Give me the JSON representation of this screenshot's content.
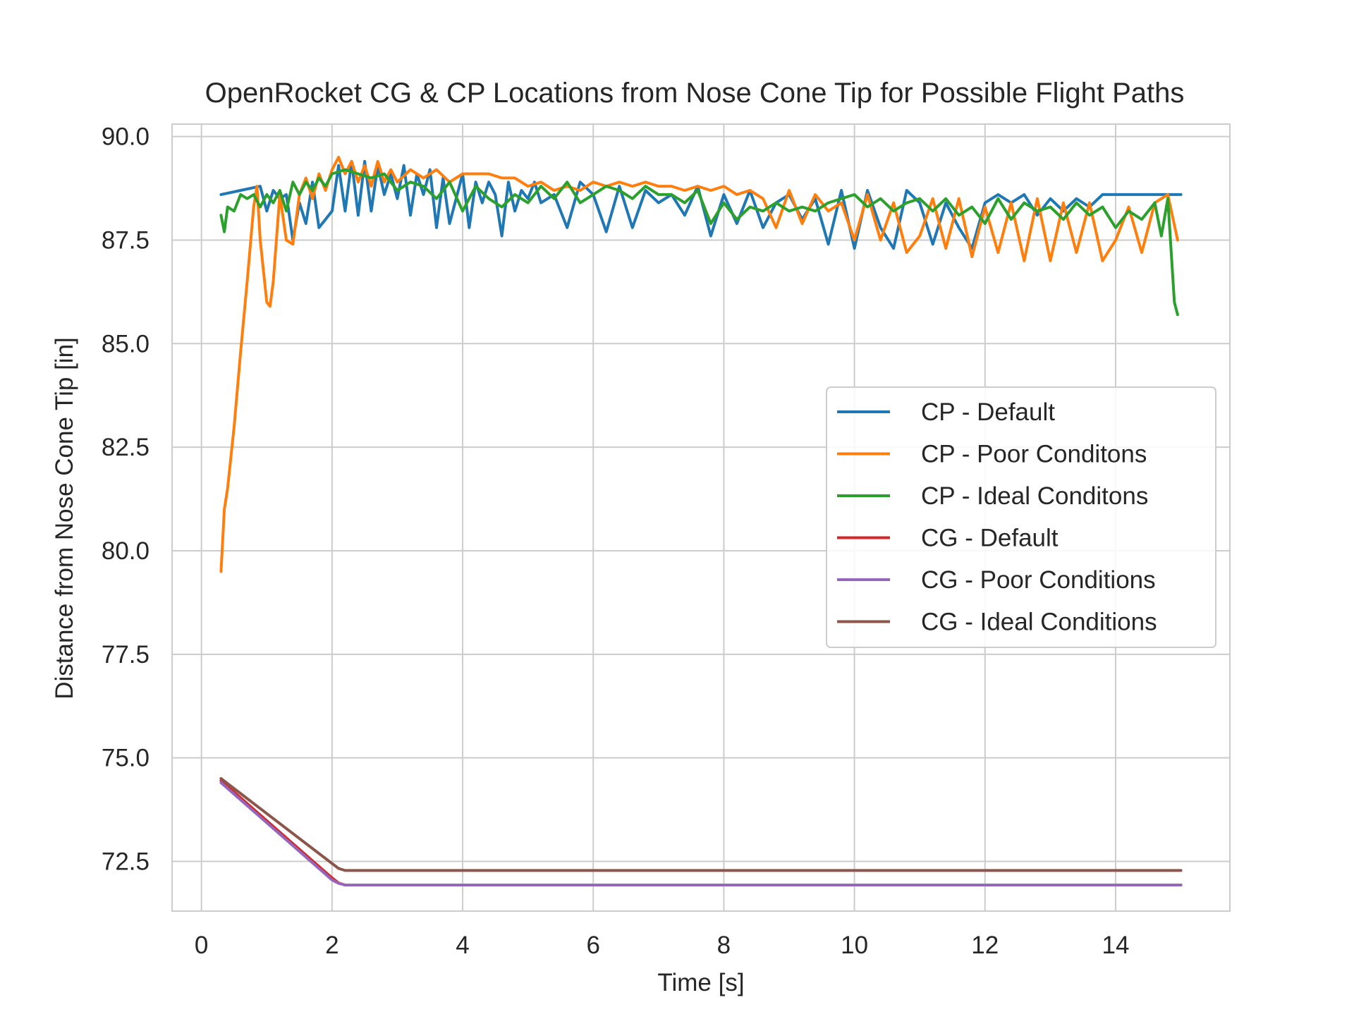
{
  "chart_data": {
    "type": "line",
    "title": "OpenRocket CG & CP Locations from Nose Cone Tip for Possible Flight Paths",
    "xlabel": "Time [s]",
    "ylabel": "Distance from Nose Cone Tip [in]",
    "xlim": [
      -0.45,
      15.75
    ],
    "ylim": [
      71.3,
      90.3
    ],
    "xticks": [
      0,
      2,
      4,
      6,
      8,
      10,
      12,
      14
    ],
    "xtick_labels": [
      "0",
      "2",
      "4",
      "6",
      "8",
      "10",
      "12",
      "14"
    ],
    "yticks": [
      72.5,
      75.0,
      77.5,
      80.0,
      82.5,
      85.0,
      87.5,
      90.0
    ],
    "ytick_labels": [
      "72.5",
      "75.0",
      "77.5",
      "80.0",
      "82.5",
      "85.0",
      "87.5",
      "90.0"
    ],
    "grid": true,
    "legend_position": "center-right",
    "series": [
      {
        "name": "CP - Default",
        "color": "#1f77b4",
        "x": [
          0.3,
          0.6,
          0.9,
          1.0,
          1.1,
          1.2,
          1.3,
          1.4,
          1.5,
          1.6,
          1.7,
          1.8,
          1.9,
          2.0,
          2.1,
          2.2,
          2.3,
          2.4,
          2.5,
          2.6,
          2.7,
          2.8,
          2.9,
          3.0,
          3.1,
          3.2,
          3.3,
          3.4,
          3.5,
          3.6,
          3.7,
          3.8,
          3.9,
          4.0,
          4.1,
          4.2,
          4.3,
          4.4,
          4.5,
          4.6,
          4.7,
          4.8,
          4.9,
          5.0,
          5.1,
          5.2,
          5.4,
          5.6,
          5.8,
          6.0,
          6.2,
          6.4,
          6.6,
          6.8,
          7.0,
          7.2,
          7.4,
          7.6,
          7.8,
          8.0,
          8.2,
          8.4,
          8.6,
          8.8,
          9.0,
          9.2,
          9.4,
          9.6,
          9.8,
          10.0,
          10.2,
          10.4,
          10.6,
          10.8,
          11.0,
          11.2,
          11.4,
          11.6,
          11.8,
          12.0,
          12.2,
          12.4,
          12.6,
          12.8,
          13.0,
          13.2,
          13.4,
          13.6,
          13.8,
          14.0,
          14.2,
          14.4,
          14.6,
          14.8,
          15.0
        ],
        "y": [
          88.6,
          88.7,
          88.8,
          88.2,
          88.7,
          88.5,
          88.6,
          87.5,
          88.4,
          87.9,
          88.9,
          87.8,
          88.0,
          88.2,
          89.3,
          88.2,
          89.4,
          88.1,
          89.4,
          88.2,
          89.3,
          88.6,
          89.1,
          88.5,
          89.3,
          88.1,
          89.1,
          88.6,
          89.2,
          87.8,
          89.0,
          87.9,
          88.5,
          89.1,
          87.8,
          88.9,
          88.4,
          88.9,
          88.6,
          87.6,
          88.9,
          88.2,
          88.7,
          88.5,
          88.9,
          88.4,
          88.6,
          87.8,
          88.9,
          88.6,
          87.7,
          88.8,
          87.8,
          88.7,
          88.4,
          88.6,
          88.1,
          88.8,
          87.6,
          88.6,
          87.9,
          88.7,
          87.8,
          88.4,
          88.6,
          88.0,
          88.5,
          87.4,
          88.7,
          87.3,
          88.7,
          87.8,
          87.3,
          88.7,
          88.4,
          87.4,
          88.4,
          87.8,
          87.3,
          88.4,
          88.6,
          88.4,
          88.6,
          88.1,
          88.5,
          88.2,
          88.5,
          88.3,
          88.6,
          88.6,
          88.6,
          88.6,
          88.6,
          88.6,
          88.6
        ]
      },
      {
        "name": "CP - Poor Conditons",
        "color": "#ff7f0e",
        "x": [
          0.3,
          0.35,
          0.4,
          0.5,
          0.6,
          0.7,
          0.8,
          0.85,
          0.9,
          1.0,
          1.05,
          1.1,
          1.2,
          1.3,
          1.4,
          1.5,
          1.6,
          1.7,
          1.8,
          1.9,
          2.0,
          2.1,
          2.2,
          2.3,
          2.4,
          2.5,
          2.6,
          2.7,
          2.8,
          2.9,
          3.0,
          3.2,
          3.4,
          3.6,
          3.8,
          4.0,
          4.2,
          4.4,
          4.6,
          4.8,
          5.0,
          5.2,
          5.4,
          5.6,
          5.8,
          6.0,
          6.2,
          6.4,
          6.6,
          6.8,
          7.0,
          7.2,
          7.4,
          7.6,
          7.8,
          8.0,
          8.2,
          8.4,
          8.6,
          8.8,
          9.0,
          9.2,
          9.4,
          9.6,
          9.8,
          10.0,
          10.2,
          10.4,
          10.6,
          10.8,
          11.0,
          11.2,
          11.4,
          11.6,
          11.8,
          12.0,
          12.2,
          12.4,
          12.6,
          12.8,
          13.0,
          13.2,
          13.4,
          13.6,
          13.8,
          14.0,
          14.2,
          14.4,
          14.6,
          14.8,
          14.95
        ],
        "y": [
          79.5,
          81.0,
          81.5,
          83.0,
          84.8,
          86.5,
          88.3,
          88.8,
          87.5,
          86.0,
          85.9,
          86.5,
          88.6,
          87.5,
          87.4,
          88.6,
          89.0,
          88.5,
          89.1,
          88.7,
          89.2,
          89.5,
          89.1,
          89.4,
          88.9,
          89.3,
          88.8,
          89.4,
          88.9,
          89.2,
          88.9,
          89.2,
          89.0,
          89.2,
          88.9,
          89.1,
          89.1,
          89.1,
          89.0,
          89.0,
          88.8,
          88.9,
          88.7,
          88.8,
          88.7,
          88.9,
          88.8,
          88.9,
          88.8,
          88.9,
          88.8,
          88.8,
          88.7,
          88.8,
          88.7,
          88.8,
          88.6,
          88.7,
          88.5,
          87.8,
          88.7,
          87.9,
          88.6,
          88.2,
          88.4,
          87.5,
          88.6,
          87.5,
          88.4,
          87.2,
          87.6,
          88.5,
          87.3,
          88.5,
          87.1,
          88.3,
          87.2,
          88.4,
          87.0,
          88.5,
          87.0,
          88.4,
          87.2,
          88.4,
          87.0,
          87.5,
          88.3,
          87.2,
          88.4,
          88.6,
          87.5
        ]
      },
      {
        "name": "CP - Ideal Conditons",
        "color": "#2ca02c",
        "x": [
          0.3,
          0.35,
          0.4,
          0.5,
          0.6,
          0.7,
          0.8,
          0.9,
          1.0,
          1.1,
          1.2,
          1.3,
          1.4,
          1.5,
          1.6,
          1.7,
          1.8,
          1.9,
          2.0,
          2.2,
          2.4,
          2.6,
          2.8,
          3.0,
          3.2,
          3.4,
          3.6,
          3.8,
          4.0,
          4.2,
          4.4,
          4.6,
          4.8,
          5.0,
          5.2,
          5.4,
          5.6,
          5.8,
          6.0,
          6.2,
          6.4,
          6.6,
          6.8,
          7.0,
          7.2,
          7.4,
          7.6,
          7.8,
          8.0,
          8.2,
          8.4,
          8.6,
          8.8,
          9.0,
          9.2,
          9.4,
          9.6,
          9.8,
          10.0,
          10.2,
          10.4,
          10.6,
          10.8,
          11.0,
          11.2,
          11.4,
          11.6,
          11.8,
          12.0,
          12.2,
          12.4,
          12.6,
          12.8,
          13.0,
          13.2,
          13.4,
          13.6,
          13.8,
          14.0,
          14.2,
          14.4,
          14.6,
          14.7,
          14.8,
          14.9,
          14.95
        ],
        "y": [
          88.1,
          87.7,
          88.3,
          88.2,
          88.6,
          88.5,
          88.6,
          88.3,
          88.6,
          88.4,
          88.7,
          88.2,
          88.9,
          88.6,
          88.9,
          88.7,
          89.0,
          88.8,
          89.1,
          89.2,
          89.1,
          89.0,
          89.1,
          88.7,
          88.9,
          88.8,
          88.5,
          88.9,
          88.2,
          88.8,
          88.5,
          88.3,
          88.6,
          88.4,
          88.8,
          88.5,
          88.9,
          88.4,
          88.6,
          88.8,
          88.7,
          88.5,
          88.8,
          88.6,
          88.6,
          88.4,
          88.7,
          87.9,
          88.4,
          88.0,
          88.3,
          88.2,
          88.4,
          88.2,
          88.3,
          88.2,
          88.4,
          88.5,
          88.6,
          88.3,
          88.5,
          88.2,
          88.4,
          88.5,
          88.2,
          88.5,
          88.1,
          88.3,
          87.9,
          88.5,
          88.0,
          88.4,
          88.2,
          88.3,
          88.0,
          88.4,
          88.1,
          88.3,
          87.8,
          88.2,
          88.0,
          88.4,
          87.6,
          88.5,
          86.0,
          85.7
        ]
      },
      {
        "name": "CG - Default",
        "color": "#d62728",
        "x": [
          0.3,
          2.0,
          2.1,
          2.2,
          2.3,
          15.0
        ],
        "y": [
          74.45,
          72.1,
          71.98,
          71.93,
          71.93,
          71.93
        ]
      },
      {
        "name": "CG - Poor Conditions",
        "color": "#9467bd",
        "x": [
          0.3,
          2.0,
          2.1,
          2.2,
          2.3,
          15.0
        ],
        "y": [
          74.4,
          72.05,
          71.97,
          71.93,
          71.93,
          71.93
        ]
      },
      {
        "name": "CG - Ideal Conditions",
        "color": "#8c564b",
        "x": [
          0.3,
          2.0,
          2.1,
          2.2,
          2.3,
          15.0
        ],
        "y": [
          74.5,
          72.45,
          72.33,
          72.28,
          72.28,
          72.28
        ]
      }
    ]
  }
}
